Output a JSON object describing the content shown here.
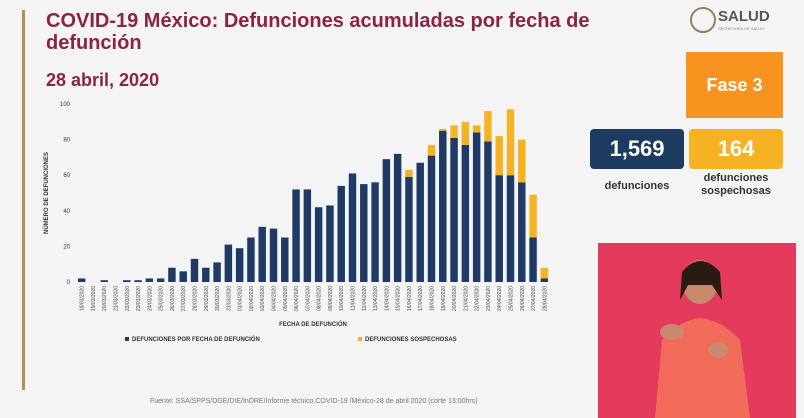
{
  "header": {
    "logo": "SALUD",
    "logo_subtitle": "SECRETARÍA DE SALUD",
    "phase": "Fase 3"
  },
  "kpis": [
    {
      "value": "1,569",
      "label": "defunciones"
    },
    {
      "value": "164",
      "label": "defunciones sospechosas"
    }
  ],
  "source": "Fuente: SSA/SPPS/DGE/DIE/InDRE/Informe técnico.COVID-19 /México-28 de abril 2020 (corte 13:00hrs)",
  "chart_data": {
    "type": "bar",
    "stacked": true,
    "title": "COVID-19 México: Defunciones acumuladas por fecha de defunción",
    "subtitle": "28 abril, 2020",
    "y_label": "NÚMERO DE DEFUNCIONES",
    "x_label": "FECHA DE DEFUNCIÓN",
    "categories": [
      "18/03/2020",
      "19/03/2020",
      "20/03/2020",
      "21/03/2020",
      "22/03/2020",
      "23/03/2020",
      "24/03/2020",
      "25/03/2020",
      "26/03/2020",
      "27/03/2020",
      "28/03/2020",
      "29/03/2020",
      "30/03/2020",
      "31/03/2020",
      "01/04/2020",
      "02/04/2020",
      "03/04/2020",
      "04/04/2020",
      "05/04/2020",
      "06/04/2020",
      "07/04/2020",
      "08/04/2020",
      "09/04/2020",
      "10/04/2020",
      "11/04/2020",
      "12/04/2020",
      "13/04/2020",
      "14/04/2020",
      "15/04/2020",
      "16/04/2020",
      "17/04/2020",
      "18/04/2020",
      "19/04/2020",
      "20/04/2020",
      "21/04/2020",
      "22/04/2020",
      "23/04/2020",
      "24/04/2020",
      "25/04/2020",
      "26/04/2020",
      "27/04/2020",
      "28/04/2020"
    ],
    "series": [
      {
        "name": "DEFUNCIONES POR FECHA DE DEFUNCIÓN",
        "color": "#1f3a64",
        "values": [
          2,
          0,
          1,
          0,
          1,
          1,
          2,
          2,
          8,
          6,
          13,
          8,
          11,
          21,
          19,
          25,
          31,
          30,
          25,
          52,
          52,
          42,
          43,
          54,
          61,
          55,
          56,
          69,
          72,
          59,
          67,
          71,
          85,
          81,
          77,
          84,
          79,
          60,
          60,
          56,
          25,
          2
        ]
      },
      {
        "name": "DEFUNCIONES SOSPECHOSAS",
        "color": "#f5b324",
        "values": [
          0,
          0,
          0,
          0,
          0,
          0,
          0,
          0,
          0,
          0,
          0,
          0,
          0,
          0,
          0,
          0,
          0,
          0,
          0,
          0,
          0,
          0,
          0,
          0,
          0,
          0,
          0,
          0,
          0,
          4,
          0,
          6,
          1,
          7,
          13,
          4,
          17,
          22,
          37,
          24,
          24,
          6
        ]
      }
    ],
    "ylim": [
      0,
      100
    ],
    "yticks": [
      0,
      20,
      40,
      60,
      80,
      100
    ],
    "grid": false
  }
}
